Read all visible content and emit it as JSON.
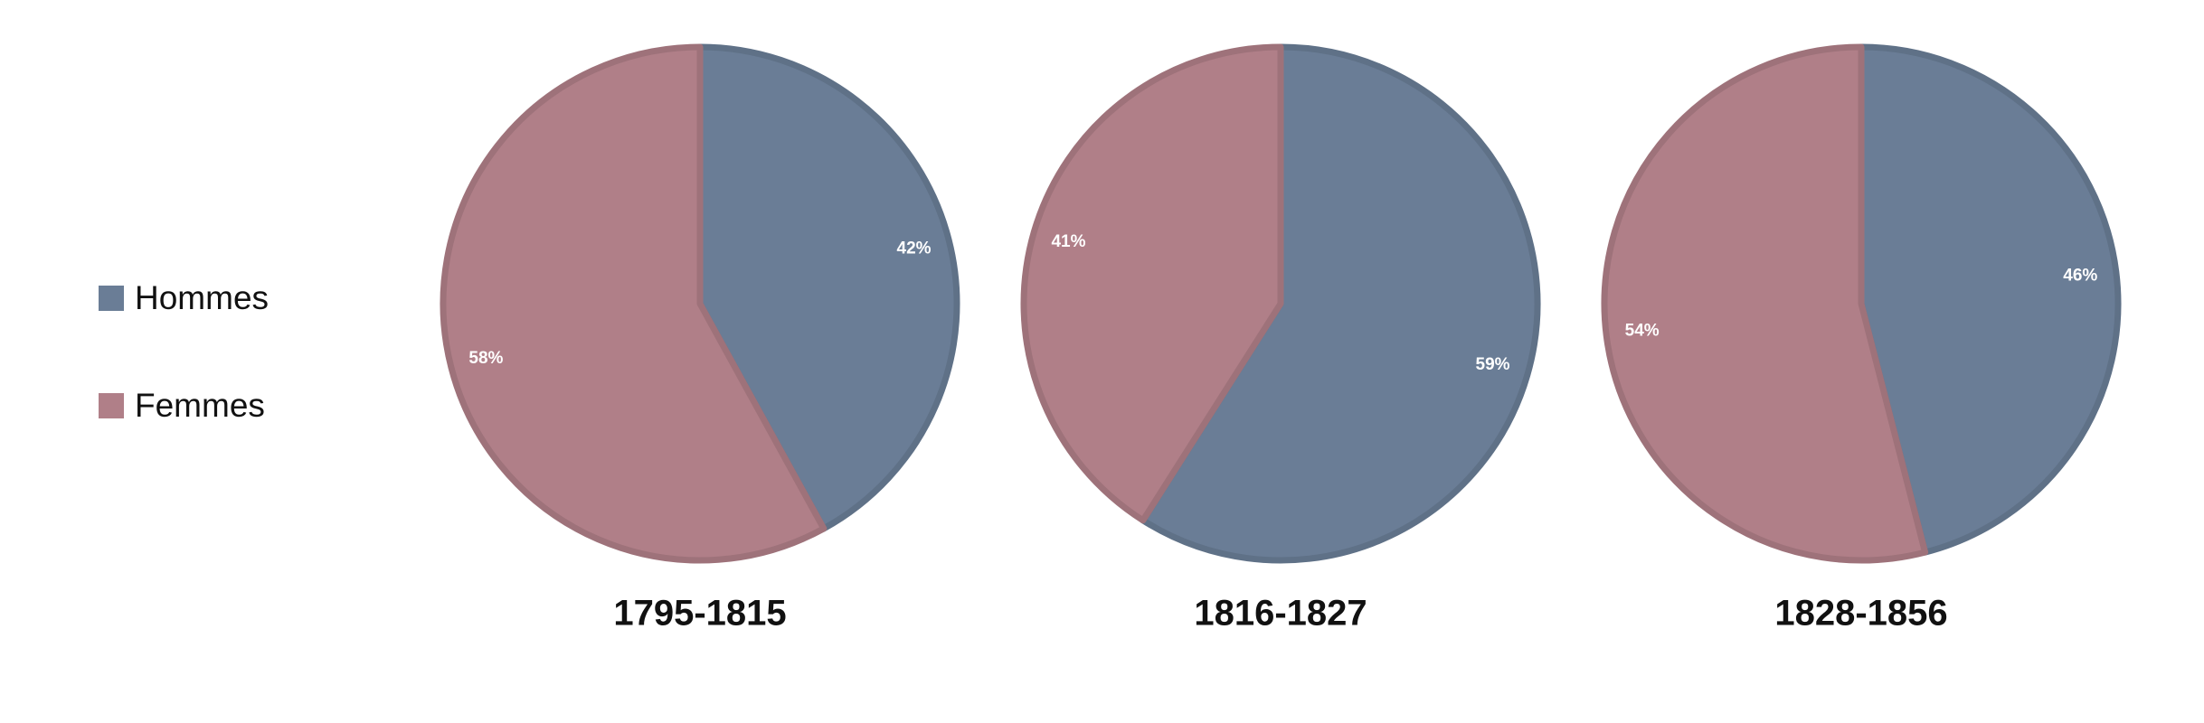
{
  "chart_data": [
    {
      "type": "pie",
      "title": "1795-1815",
      "categories": [
        "Hommes",
        "Femmes"
      ],
      "values": [
        42,
        58
      ],
      "value_labels": [
        "42%",
        "58%"
      ],
      "colors": [
        "#6a7d96",
        "#b07f88"
      ],
      "legend": "left"
    },
    {
      "type": "pie",
      "title": "1816-1827",
      "categories": [
        "Hommes",
        "Femmes"
      ],
      "values": [
        59,
        41
      ],
      "value_labels": [
        "59%",
        "41%"
      ],
      "colors": [
        "#6a7d96",
        "#b07f88"
      ]
    },
    {
      "type": "pie",
      "title": "1828-1856",
      "categories": [
        "Hommes",
        "Femmes"
      ],
      "values": [
        46,
        54
      ],
      "value_labels": [
        "46%",
        "54%"
      ],
      "colors": [
        "#6a7d96",
        "#b07f88"
      ]
    }
  ]
}
